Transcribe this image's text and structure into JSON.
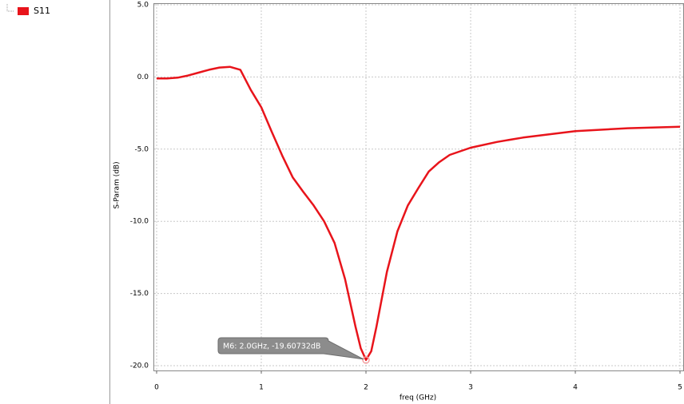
{
  "chart_data": {
    "type": "line",
    "xlabel": "freq (GHz)",
    "ylabel": "S-Param (dB)",
    "xlim": [
      0,
      5
    ],
    "ylim": [
      -20,
      5
    ],
    "xticks": [
      0,
      1,
      2,
      3,
      4,
      5
    ],
    "yticks": [
      {
        "value": 5,
        "label": "5.0"
      },
      {
        "value": 0,
        "label": "0.0"
      },
      {
        "value": -5,
        "label": "-5.0"
      },
      {
        "value": -10,
        "label": "-10.0"
      },
      {
        "value": -15,
        "label": "-15.0"
      },
      {
        "value": -20,
        "label": "-20.0"
      }
    ],
    "grid": true,
    "x": [
      0,
      0.1,
      0.2,
      0.3,
      0.4,
      0.5,
      0.6,
      0.7,
      0.8,
      0.9,
      1.0,
      1.1,
      1.2,
      1.3,
      1.4,
      1.5,
      1.6,
      1.7,
      1.8,
      1.9,
      1.95,
      2.0,
      2.05,
      2.1,
      2.2,
      2.3,
      2.4,
      2.5,
      2.6,
      2.7,
      2.8,
      3.0,
      3.25,
      3.5,
      4.0,
      4.5,
      5.0
    ],
    "series": [
      {
        "name": "S11",
        "color": "#e8141b",
        "values": [
          -0.1,
          -0.1,
          -0.05,
          0.1,
          0.3,
          0.5,
          0.65,
          0.7,
          0.5,
          -0.9,
          -2.1,
          -3.8,
          -5.45,
          -6.95,
          -7.95,
          -8.9,
          -10.0,
          -11.5,
          -14.0,
          -17.3,
          -18.8,
          -19.6,
          -19.0,
          -17.3,
          -13.5,
          -10.7,
          -8.9,
          -7.7,
          -6.55,
          -5.9,
          -5.4,
          -4.9,
          -4.5,
          -4.2,
          -3.75,
          -3.55,
          -3.45
        ]
      }
    ],
    "marker": {
      "x": 2.0,
      "y": -19.60732,
      "label": "M6: 2.0GHz, -19.60732dB"
    }
  }
}
